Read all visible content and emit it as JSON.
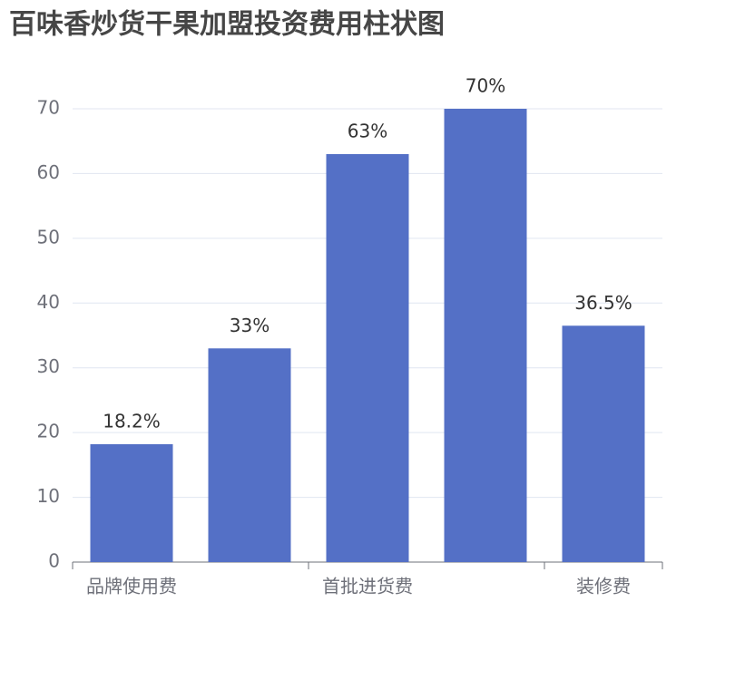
{
  "chart_data": {
    "type": "bar",
    "title": "百味香炒货干果加盟投资费用柱状图",
    "categories": [
      "品牌使用费",
      null,
      "首批进货费",
      null,
      "装修费"
    ],
    "values": [
      18.2,
      33,
      63,
      70,
      36.5
    ],
    "value_labels": [
      "18.2%",
      "33%",
      "63%",
      "70%",
      "36.5%"
    ],
    "color": "#5470c6",
    "ylim": [
      0,
      70
    ],
    "yticks": [
      0,
      10,
      20,
      30,
      40,
      50,
      60,
      70
    ],
    "grid": true
  }
}
